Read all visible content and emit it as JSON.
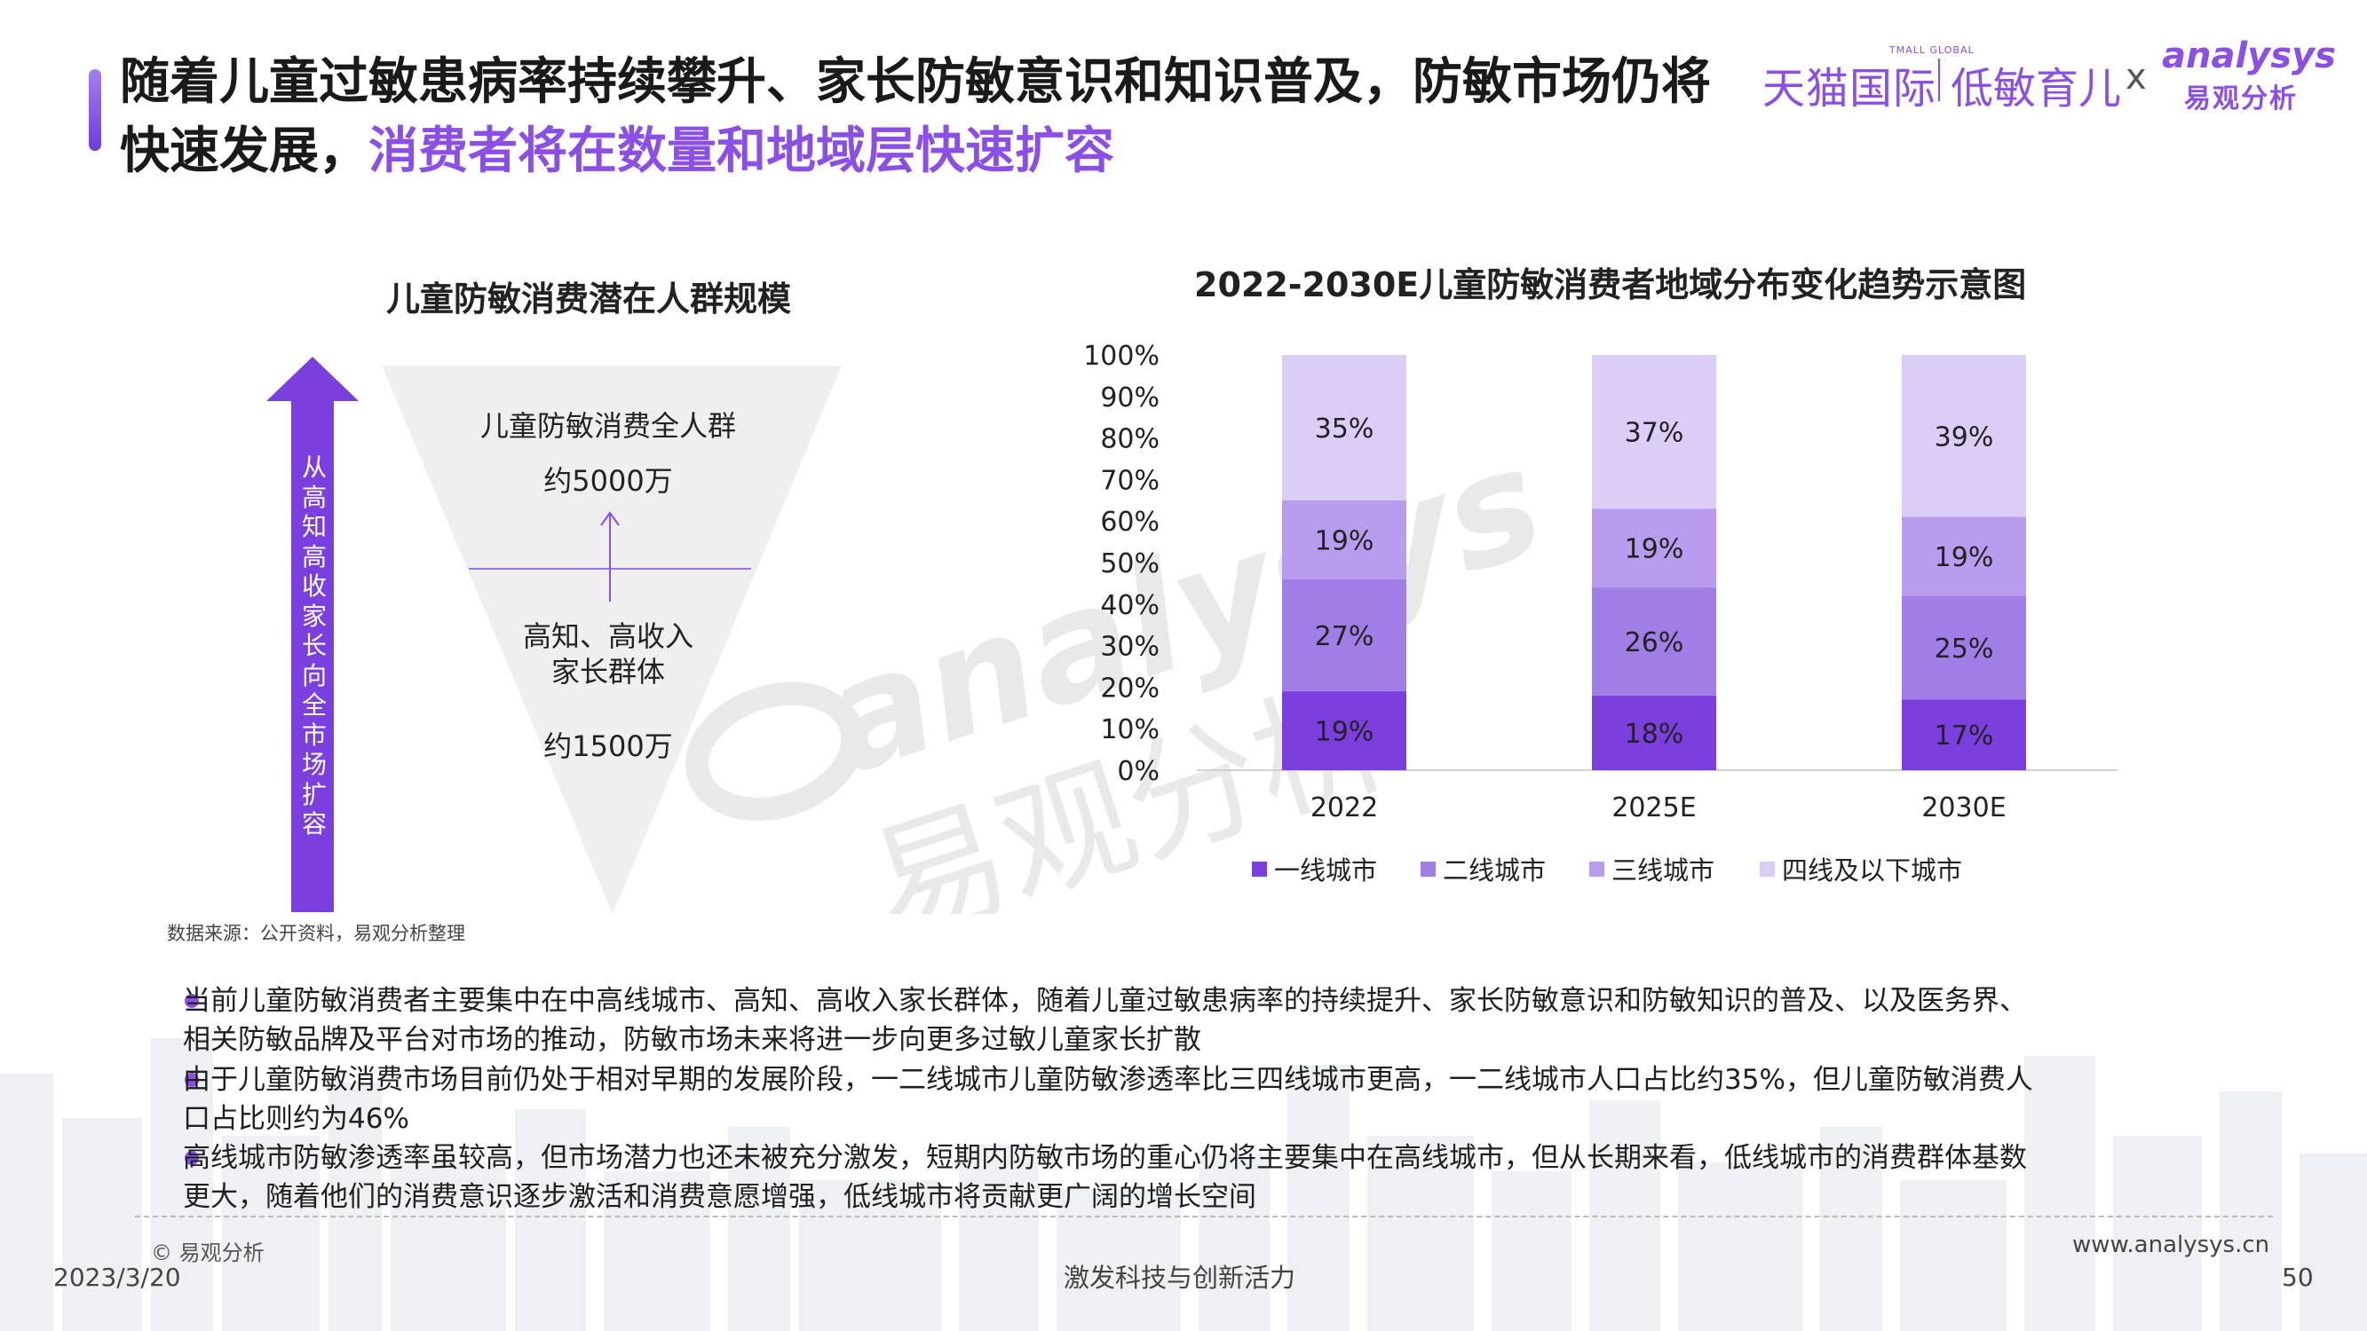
{
  "header": {
    "title_part1": "随着儿童过敏患病率持续攀升、家长防敏意识和知识普及，防敏市场仍将快速发展，",
    "title_highlight": "消费者将在数量和地域层快速扩容",
    "brand_tmall": "天猫国际",
    "brand_tmall_small": "TMALL GLOBAL",
    "brand_low": "低敏育儿",
    "brand_x": "x",
    "brand_analysys": "analysys",
    "brand_analysys_cn": "易观分析"
  },
  "left_panel": {
    "title": "儿童防敏消费潜在人群规模",
    "arrow_text": "从高知高收家长向全市场扩容",
    "top_group_label": "儿童防敏消费全人群",
    "top_group_value": "约5000万",
    "bottom_group_label_line1": "高知、高收入",
    "bottom_group_label_line2": "家长群体",
    "bottom_group_value": "约1500万",
    "source": "数据来源：公开资料，易观分析整理"
  },
  "chart_data": {
    "type": "bar",
    "stacked": true,
    "title": "2022-2030E儿童防敏消费者地域分布变化趋势示意图",
    "categories": [
      "2022",
      "2025E",
      "2030E"
    ],
    "series": [
      {
        "name": "一线城市",
        "values": [
          19,
          18,
          17
        ],
        "color": "#7a3fdc"
      },
      {
        "name": "二线城市",
        "values": [
          27,
          26,
          25
        ],
        "color": "#a07ee6"
      },
      {
        "name": "三线城市",
        "values": [
          19,
          19,
          19
        ],
        "color": "#b89cee"
      },
      {
        "name": "四线及以下城市",
        "values": [
          35,
          37,
          39
        ],
        "color": "#dccdf6"
      }
    ],
    "y_ticks": [
      "0%",
      "10%",
      "20%",
      "30%",
      "40%",
      "50%",
      "60%",
      "70%",
      "80%",
      "90%",
      "100%"
    ],
    "ylim": [
      0,
      100
    ],
    "legend_position": "bottom",
    "grid": false
  },
  "bullets": [
    {
      "line1": "当前儿童防敏消费者主要集中在中高线城市、高知、高收入家长群体，随着儿童过敏患病率的持续提升、家长防敏意识和防敏知识的普及、以及医务界、",
      "line2": "相关防敏品牌及平台对市场的推动，防敏市场未来将进一步向更多过敏儿童家长扩散"
    },
    {
      "line1": "由于儿童防敏消费市场目前仍处于相对早期的发展阶段，一二线城市儿童防敏渗透率比三四线城市更高，一二线城市人口占比约35%，但儿童防敏消费人",
      "line2": "口占比则约为46%"
    },
    {
      "line1": "高线城市防敏渗透率虽较高，但市场潜力也还未被充分激发，短期内防敏市场的重心仍将主要集中在高线城市，但从长期来看，低线城市的消费群体基数",
      "line2": "更大，随着他们的消费意识逐步激活和消费意愿增强，低线城市将贡献更广阔的增长空间"
    }
  ],
  "footer": {
    "copyright": "© 易观分析",
    "date": "2023/3/20",
    "slogan": "激发科技与创新活力",
    "url": "www.analysys.cn",
    "page": "50"
  },
  "watermark": {
    "text_en": "analysys",
    "text_cn": "易观分析"
  }
}
